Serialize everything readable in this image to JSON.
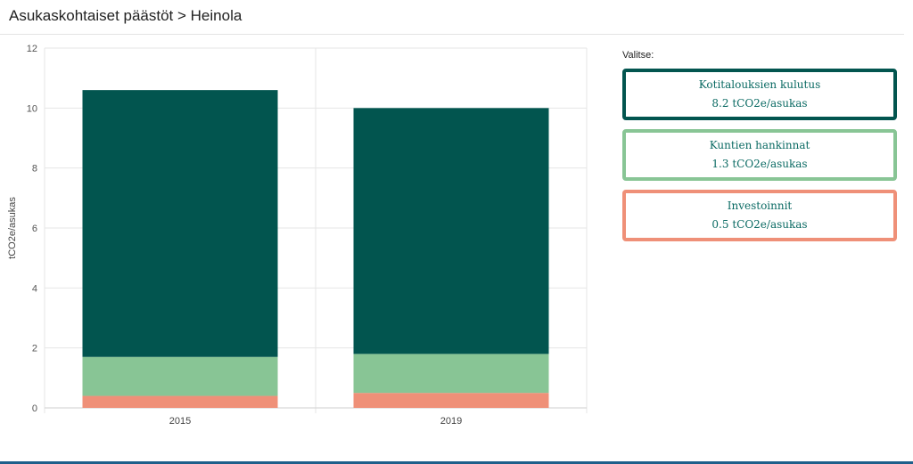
{
  "page": {
    "title": "Asukaskohtaiset päästöt > Heinola"
  },
  "panel": {
    "label": "Valitse:",
    "selectors": [
      {
        "name": "Kotitalouksien kulutus",
        "value": "8.2 tCO2e/asukas",
        "color": "#02554f"
      },
      {
        "name": "Kuntien hankinnat",
        "value": "1.3 tCO2e/asukas",
        "color": "#88c595"
      },
      {
        "name": "Investoinnit",
        "value": "0.5 tCO2e/asukas",
        "color": "#ef9078"
      }
    ]
  },
  "chart_data": {
    "type": "bar",
    "stacked": true,
    "categories": [
      "2015",
      "2019"
    ],
    "series": [
      {
        "name": "Investoinnit",
        "color": "#ef9078",
        "values": [
          0.4,
          0.5
        ]
      },
      {
        "name": "Kuntien hankinnat",
        "color": "#88c595",
        "values": [
          1.3,
          1.3
        ]
      },
      {
        "name": "Kotitalouksien kulutus",
        "color": "#02554f",
        "values": [
          8.9,
          8.2
        ]
      }
    ],
    "title": "",
    "xlabel": "",
    "ylabel": "tCO2e/asukas",
    "ylim": [
      0,
      12
    ],
    "yticks": [
      0,
      2,
      4,
      6,
      8,
      10,
      12
    ],
    "grid": true
  }
}
